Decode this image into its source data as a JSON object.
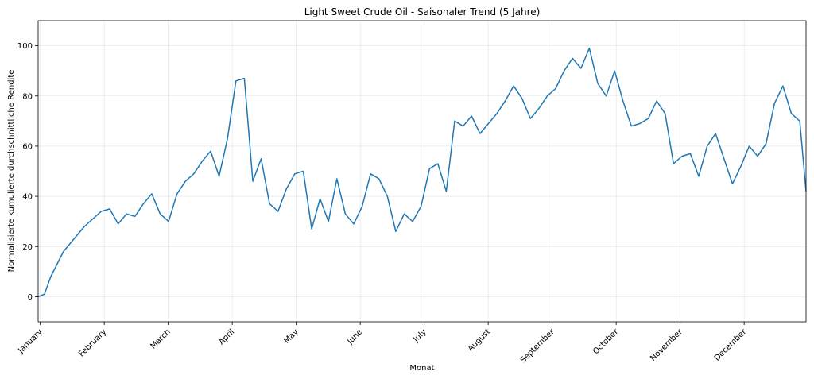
{
  "chart_data": {
    "type": "line",
    "title": "Light Sweet Crude Oil - Saisonaler Trend (5 Jahre)",
    "xlabel": "Monat",
    "ylabel": "Normalisierte kumulierte durchschnittliche Rendite",
    "x_ticks": [
      "January",
      "February",
      "March",
      "April",
      "May",
      "June",
      "July",
      "August",
      "September",
      "October",
      "November",
      "December"
    ],
    "y_ticks": [
      0,
      20,
      40,
      60,
      80,
      100
    ],
    "xlim": [
      0,
      365
    ],
    "ylim": [
      -10,
      110
    ],
    "grid": true,
    "series_color": "#1f77b4",
    "series": [
      {
        "x": [
          0,
          3,
          6,
          12,
          18,
          22,
          26,
          30,
          34,
          38,
          42,
          46,
          50,
          54,
          58,
          62,
          66,
          70,
          74,
          78,
          82,
          86,
          90,
          94,
          98,
          102,
          106,
          110,
          114,
          118,
          122,
          126,
          130,
          134,
          138,
          142,
          146,
          150,
          154,
          158,
          162,
          166,
          170,
          174,
          178,
          182,
          186,
          190,
          194,
          198,
          202,
          206,
          210,
          214,
          218,
          222,
          226,
          230,
          234,
          238,
          242,
          246,
          250,
          254,
          258,
          262,
          266,
          270,
          274,
          278,
          282,
          286,
          290,
          294,
          298,
          302,
          306,
          310,
          314,
          318,
          322,
          326,
          330,
          334,
          338,
          342,
          346,
          350,
          354,
          358,
          362,
          365
        ],
        "y": [
          0,
          1,
          8,
          18,
          24,
          28,
          31,
          34,
          35,
          29,
          33,
          32,
          37,
          41,
          33,
          30,
          41,
          46,
          49,
          54,
          58,
          48,
          63,
          86,
          87,
          46,
          55,
          37,
          34,
          43,
          49,
          50,
          27,
          39,
          30,
          47,
          33,
          29,
          36,
          49,
          47,
          40,
          26,
          33,
          30,
          36,
          51,
          53,
          42,
          70,
          68,
          72,
          65,
          69,
          73,
          78,
          84,
          79,
          71,
          75,
          80,
          83,
          90,
          95,
          91,
          99,
          85,
          80,
          90,
          78,
          68,
          69,
          71,
          78,
          73,
          53,
          56,
          57,
          48,
          60,
          65,
          55,
          45,
          52,
          60,
          56,
          61,
          77,
          84,
          73,
          70,
          42
        ]
      }
    ]
  }
}
